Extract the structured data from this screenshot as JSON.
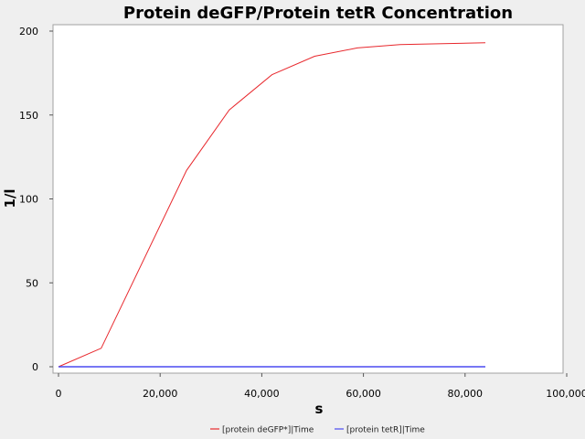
{
  "chart_data": {
    "type": "line",
    "title": "Protein deGFP/Protein tetR Concentration",
    "xlabel": "s",
    "ylabel": "1/l",
    "xlim": [
      0,
      100000
    ],
    "ylim": [
      0,
      200
    ],
    "xticks": [
      0,
      20000,
      40000,
      60000,
      80000,
      100000
    ],
    "xtick_labels": [
      "0",
      "20,000",
      "40,000",
      "60,000",
      "80,000",
      "100,000"
    ],
    "yticks": [
      0,
      50,
      100,
      150,
      200
    ],
    "ytick_labels": [
      "0",
      "50",
      "100",
      "150",
      "200"
    ],
    "grid": false,
    "legend_position": "bottom",
    "series": [
      {
        "name": "[protein deGFP*]|Time",
        "color": "#e8282d",
        "x": [
          0,
          8400,
          25200,
          33600,
          42000,
          50400,
          58800,
          67200,
          75600,
          84000
        ],
        "y": [
          0,
          11,
          117,
          153,
          174,
          185,
          190,
          192,
          192.5,
          193
        ]
      },
      {
        "name": "[protein tetR]|Time",
        "color": "#4a4af0",
        "x": [
          0,
          8400,
          16800,
          25200,
          33600,
          42000,
          50400,
          58800,
          67200,
          75600,
          84000
        ],
        "y": [
          0,
          0,
          0,
          0,
          0,
          0,
          0,
          0,
          0,
          0,
          0
        ]
      }
    ]
  }
}
